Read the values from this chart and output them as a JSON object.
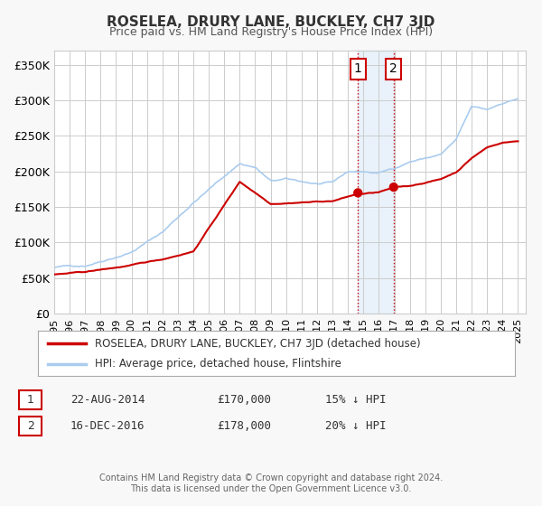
{
  "title": "ROSELEA, DRURY LANE, BUCKLEY, CH7 3JD",
  "subtitle": "Price paid vs. HM Land Registry's House Price Index (HPI)",
  "ylim": [
    0,
    370000
  ],
  "yticks": [
    0,
    50000,
    100000,
    150000,
    200000,
    250000,
    300000,
    350000
  ],
  "ytick_labels": [
    "£0",
    "£50K",
    "£100K",
    "£150K",
    "£200K",
    "£250K",
    "£300K",
    "£350K"
  ],
  "xlim_start": 1995.0,
  "xlim_end": 2025.5,
  "background_color": "#f8f8f8",
  "plot_background": "#ffffff",
  "grid_color": "#cccccc",
  "red_line_color": "#cc0000",
  "blue_line_color": "#aaccee",
  "sale1_x": 2014.645,
  "sale1_y": 170000,
  "sale2_x": 2016.958,
  "sale2_y": 178000,
  "shade_x1": 2014.645,
  "shade_x2": 2016.958,
  "legend1_label": "ROSELEA, DRURY LANE, BUCKLEY, CH7 3JD (detached house)",
  "legend2_label": "HPI: Average price, detached house, Flintshire",
  "table_row1_num": "1",
  "table_row1_date": "22-AUG-2014",
  "table_row1_price": "£170,000",
  "table_row1_hpi": "15% ↓ HPI",
  "table_row2_num": "2",
  "table_row2_date": "16-DEC-2016",
  "table_row2_price": "£178,000",
  "table_row2_hpi": "20% ↓ HPI",
  "footer": "Contains HM Land Registry data © Crown copyright and database right 2024.\nThis data is licensed under the Open Government Licence v3.0.",
  "xtick_years": [
    1995,
    1996,
    1997,
    1998,
    1999,
    2000,
    2001,
    2002,
    2003,
    2004,
    2005,
    2006,
    2007,
    2008,
    2009,
    2010,
    2011,
    2012,
    2013,
    2014,
    2015,
    2016,
    2017,
    2018,
    2019,
    2020,
    2021,
    2022,
    2023,
    2024,
    2025
  ]
}
